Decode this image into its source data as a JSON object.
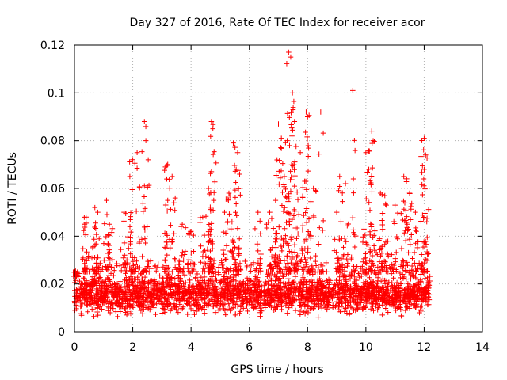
{
  "chart_data": {
    "type": "scatter",
    "title": "Day 327 of 2016, Rate Of TEC Index for receiver acor",
    "xlabel": "GPS time / hours",
    "ylabel": "ROTI / TECUs",
    "xlim": [
      0,
      14
    ],
    "ylim": [
      0,
      0.12
    ],
    "xticks": [
      0,
      2,
      4,
      6,
      8,
      10,
      12,
      14
    ],
    "xtick_labels": [
      "0",
      "2",
      "4",
      "6",
      "8",
      "10",
      "12",
      "14"
    ],
    "yticks": [
      0,
      0.02,
      0.04,
      0.06,
      0.08,
      0.1,
      0.12
    ],
    "ytick_labels": [
      "0",
      "0.02",
      "0.04",
      "0.06",
      "0.08",
      "0.1",
      "0.12"
    ],
    "grid": true,
    "marker": "+",
    "series_color": "#ff0000",
    "x_range_observed": [
      0.0,
      12.2
    ],
    "baseline_band": [
      0.005,
      0.025
    ],
    "peaks": [
      {
        "x": 0.05,
        "y": 0.023
      },
      {
        "x": 0.35,
        "y": 0.045
      },
      {
        "x": 0.4,
        "y": 0.048
      },
      {
        "x": 0.7,
        "y": 0.052
      },
      {
        "x": 0.8,
        "y": 0.05
      },
      {
        "x": 1.1,
        "y": 0.055
      },
      {
        "x": 1.2,
        "y": 0.045
      },
      {
        "x": 1.7,
        "y": 0.05
      },
      {
        "x": 1.9,
        "y": 0.065
      },
      {
        "x": 2.0,
        "y": 0.072
      },
      {
        "x": 2.15,
        "y": 0.075
      },
      {
        "x": 2.4,
        "y": 0.088
      },
      {
        "x": 2.45,
        "y": 0.08
      },
      {
        "x": 3.2,
        "y": 0.07
      },
      {
        "x": 3.35,
        "y": 0.065
      },
      {
        "x": 3.2,
        "y": 0.055
      },
      {
        "x": 3.7,
        "y": 0.045
      },
      {
        "x": 4.0,
        "y": 0.042
      },
      {
        "x": 4.4,
        "y": 0.048
      },
      {
        "x": 4.6,
        "y": 0.06
      },
      {
        "x": 4.7,
        "y": 0.088
      },
      {
        "x": 4.75,
        "y": 0.085
      },
      {
        "x": 4.7,
        "y": 0.067
      },
      {
        "x": 5.15,
        "y": 0.05
      },
      {
        "x": 5.3,
        "y": 0.058
      },
      {
        "x": 5.45,
        "y": 0.079
      },
      {
        "x": 5.6,
        "y": 0.075
      },
      {
        "x": 5.55,
        "y": 0.068
      },
      {
        "x": 6.3,
        "y": 0.05
      },
      {
        "x": 6.7,
        "y": 0.05
      },
      {
        "x": 6.9,
        "y": 0.055
      },
      {
        "x": 7.0,
        "y": 0.087
      },
      {
        "x": 7.1,
        "y": 0.081
      },
      {
        "x": 7.2,
        "y": 0.065
      },
      {
        "x": 7.35,
        "y": 0.117
      },
      {
        "x": 7.42,
        "y": 0.115
      },
      {
        "x": 7.48,
        "y": 0.1
      },
      {
        "x": 7.5,
        "y": 0.093
      },
      {
        "x": 7.55,
        "y": 0.088
      },
      {
        "x": 7.3,
        "y": 0.08
      },
      {
        "x": 7.75,
        "y": 0.075
      },
      {
        "x": 7.95,
        "y": 0.092
      },
      {
        "x": 8.0,
        "y": 0.09
      },
      {
        "x": 8.45,
        "y": 0.092
      },
      {
        "x": 7.9,
        "y": 0.063
      },
      {
        "x": 8.2,
        "y": 0.06
      },
      {
        "x": 9.1,
        "y": 0.065
      },
      {
        "x": 9.3,
        "y": 0.062
      },
      {
        "x": 9.0,
        "y": 0.05
      },
      {
        "x": 9.55,
        "y": 0.101
      },
      {
        "x": 10.0,
        "y": 0.075
      },
      {
        "x": 10.2,
        "y": 0.084
      },
      {
        "x": 10.25,
        "y": 0.08
      },
      {
        "x": 10.1,
        "y": 0.068
      },
      {
        "x": 10.5,
        "y": 0.058
      },
      {
        "x": 10.65,
        "y": 0.057
      },
      {
        "x": 11.0,
        "y": 0.053
      },
      {
        "x": 11.3,
        "y": 0.065
      },
      {
        "x": 11.4,
        "y": 0.064
      },
      {
        "x": 11.5,
        "y": 0.058
      },
      {
        "x": 11.7,
        "y": 0.05
      },
      {
        "x": 12.0,
        "y": 0.081
      },
      {
        "x": 12.05,
        "y": 0.074
      },
      {
        "x": 12.0,
        "y": 0.068
      }
    ]
  }
}
